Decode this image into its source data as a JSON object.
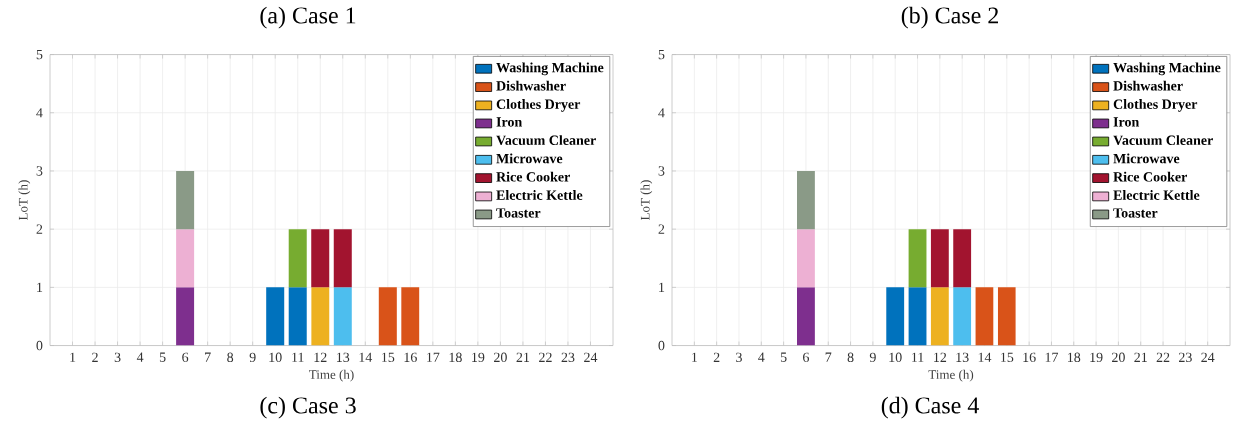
{
  "chart_data": [
    {
      "type": "bar",
      "stacked": true,
      "title": "(a) Case 1",
      "xlabel": "Time (h)",
      "ylabel": "LoT (h)",
      "annotations": [
        "(c) Case 3"
      ],
      "categories": [
        "1",
        "2",
        "3",
        "4",
        "5",
        "6",
        "7",
        "8",
        "9",
        "10",
        "11",
        "12",
        "13",
        "14",
        "15",
        "16",
        "17",
        "18",
        "19",
        "20",
        "21",
        "22",
        "23",
        "24"
      ],
      "ylim": [
        0,
        5
      ],
      "yticks": [
        0,
        1,
        2,
        3,
        4,
        5
      ],
      "grid": true,
      "legend": "top right",
      "series": [
        {
          "name": "Washing Machine",
          "color": "#0072BD",
          "values": [
            null,
            null,
            null,
            null,
            null,
            null,
            null,
            null,
            null,
            1,
            1,
            null,
            null,
            null,
            null,
            null,
            null,
            null,
            null,
            null,
            null,
            null,
            null,
            null
          ]
        },
        {
          "name": "Dishwasher",
          "color": "#D95319",
          "values": [
            null,
            null,
            null,
            null,
            null,
            null,
            null,
            null,
            null,
            null,
            null,
            null,
            null,
            null,
            1,
            1,
            null,
            null,
            null,
            null,
            null,
            null,
            null,
            null
          ]
        },
        {
          "name": "Clothes Dryer",
          "color": "#EDB120",
          "values": [
            null,
            null,
            null,
            null,
            null,
            null,
            null,
            null,
            null,
            null,
            null,
            1,
            null,
            null,
            null,
            null,
            null,
            null,
            null,
            null,
            null,
            null,
            null,
            null
          ]
        },
        {
          "name": "Iron",
          "color": "#7E2F8E",
          "values": [
            null,
            null,
            null,
            null,
            null,
            1,
            null,
            null,
            null,
            null,
            null,
            null,
            null,
            null,
            null,
            null,
            null,
            null,
            null,
            null,
            null,
            null,
            null,
            null
          ]
        },
        {
          "name": "Vacuum Cleaner",
          "color": "#77AC30",
          "values": [
            null,
            null,
            null,
            null,
            null,
            null,
            null,
            null,
            null,
            null,
            1,
            null,
            null,
            null,
            null,
            null,
            null,
            null,
            null,
            null,
            null,
            null,
            null,
            null
          ]
        },
        {
          "name": "Microwave",
          "color": "#4DBEEE",
          "values": [
            null,
            null,
            null,
            null,
            null,
            null,
            null,
            null,
            null,
            null,
            null,
            null,
            1,
            null,
            null,
            null,
            null,
            null,
            null,
            null,
            null,
            null,
            null,
            null
          ]
        },
        {
          "name": "Rice Cooker",
          "color": "#A2142F",
          "values": [
            null,
            null,
            null,
            null,
            null,
            null,
            null,
            null,
            null,
            null,
            null,
            1,
            1,
            null,
            null,
            null,
            null,
            null,
            null,
            null,
            null,
            null,
            null,
            null
          ]
        },
        {
          "name": "Electric Kettle",
          "color": "#EDB0D3",
          "values": [
            null,
            null,
            null,
            null,
            null,
            1,
            null,
            null,
            null,
            null,
            null,
            null,
            null,
            null,
            null,
            null,
            null,
            null,
            null,
            null,
            null,
            null,
            null,
            null
          ]
        },
        {
          "name": "Toaster",
          "color": "#8A9A87",
          "values": [
            null,
            null,
            null,
            null,
            null,
            1,
            null,
            null,
            null,
            null,
            null,
            null,
            null,
            null,
            null,
            null,
            null,
            null,
            null,
            null,
            null,
            null,
            null,
            null
          ]
        }
      ]
    },
    {
      "type": "bar",
      "stacked": true,
      "title": "(b) Case 2",
      "xlabel": "Time (h)",
      "ylabel": "LoT (h)",
      "annotations": [
        "(d) Case 4"
      ],
      "categories": [
        "1",
        "2",
        "3",
        "4",
        "5",
        "6",
        "7",
        "8",
        "9",
        "10",
        "11",
        "12",
        "13",
        "14",
        "15",
        "16",
        "17",
        "18",
        "19",
        "20",
        "21",
        "22",
        "23",
        "24"
      ],
      "ylim": [
        0,
        5
      ],
      "yticks": [
        0,
        1,
        2,
        3,
        4,
        5
      ],
      "grid": true,
      "legend": "top right",
      "series": [
        {
          "name": "Washing Machine",
          "color": "#0072BD",
          "values": [
            null,
            null,
            null,
            null,
            null,
            null,
            null,
            null,
            null,
            1,
            1,
            null,
            null,
            null,
            null,
            null,
            null,
            null,
            null,
            null,
            null,
            null,
            null,
            null
          ]
        },
        {
          "name": "Dishwasher",
          "color": "#D95319",
          "values": [
            null,
            null,
            null,
            null,
            null,
            null,
            null,
            null,
            null,
            null,
            null,
            null,
            null,
            1,
            1,
            null,
            null,
            null,
            null,
            null,
            null,
            null,
            null,
            null
          ]
        },
        {
          "name": "Clothes Dryer",
          "color": "#EDB120",
          "values": [
            null,
            null,
            null,
            null,
            null,
            null,
            null,
            null,
            null,
            null,
            null,
            1,
            null,
            null,
            null,
            null,
            null,
            null,
            null,
            null,
            null,
            null,
            null,
            null
          ]
        },
        {
          "name": "Iron",
          "color": "#7E2F8E",
          "values": [
            null,
            null,
            null,
            null,
            null,
            1,
            null,
            null,
            null,
            null,
            null,
            null,
            null,
            null,
            null,
            null,
            null,
            null,
            null,
            null,
            null,
            null,
            null,
            null
          ]
        },
        {
          "name": "Vacuum Cleaner",
          "color": "#77AC30",
          "values": [
            null,
            null,
            null,
            null,
            null,
            null,
            null,
            null,
            null,
            null,
            1,
            null,
            null,
            null,
            null,
            null,
            null,
            null,
            null,
            null,
            null,
            null,
            null,
            null
          ]
        },
        {
          "name": "Microwave",
          "color": "#4DBEEE",
          "values": [
            null,
            null,
            null,
            null,
            null,
            null,
            null,
            null,
            null,
            null,
            null,
            null,
            1,
            null,
            null,
            null,
            null,
            null,
            null,
            null,
            null,
            null,
            null,
            null
          ]
        },
        {
          "name": "Rice Cooker",
          "color": "#A2142F",
          "values": [
            null,
            null,
            null,
            null,
            null,
            null,
            null,
            null,
            null,
            null,
            null,
            1,
            1,
            null,
            null,
            null,
            null,
            null,
            null,
            null,
            null,
            null,
            null,
            null
          ]
        },
        {
          "name": "Electric Kettle",
          "color": "#EDB0D3",
          "values": [
            null,
            null,
            null,
            null,
            null,
            1,
            null,
            null,
            null,
            null,
            null,
            null,
            null,
            null,
            null,
            null,
            null,
            null,
            null,
            null,
            null,
            null,
            null,
            null
          ]
        },
        {
          "name": "Toaster",
          "color": "#8A9A87",
          "values": [
            null,
            null,
            null,
            null,
            null,
            1,
            null,
            null,
            null,
            null,
            null,
            null,
            null,
            null,
            null,
            null,
            null,
            null,
            null,
            null,
            null,
            null,
            null,
            null
          ]
        }
      ]
    }
  ]
}
